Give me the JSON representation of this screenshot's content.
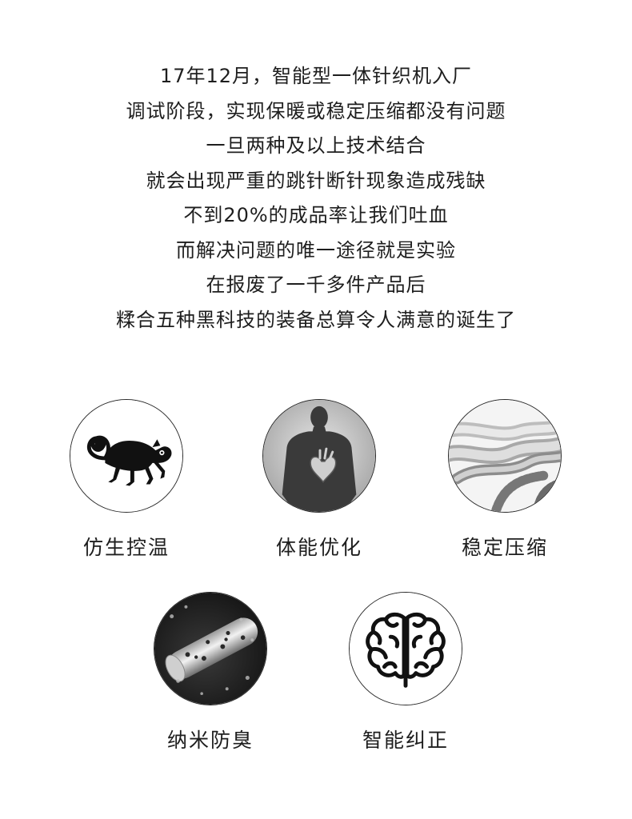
{
  "intro_lines": [
    "17年12月，智能型一体针织机入厂",
    "调试阶段，实现保暖或稳定压缩都没有问题",
    "一旦两种及以上技术结合",
    "就会出现严重的跳针断针现象造成残缺",
    "不到20%的成品率让我们吐血",
    "而解决问题的唯一途径就是实验",
    "在报废了一千多件产品后",
    "糅合五种黑科技的装备总算令人满意的诞生了"
  ],
  "features": [
    {
      "label": "仿生控温",
      "icon": "chameleon-icon"
    },
    {
      "label": "体能优化",
      "icon": "human-heart-icon"
    },
    {
      "label": "稳定压缩",
      "icon": "twisted-fiber-icon"
    },
    {
      "label": "纳米防臭",
      "icon": "nano-fiber-icon"
    },
    {
      "label": "智能纠正",
      "icon": "brain-icon"
    }
  ]
}
